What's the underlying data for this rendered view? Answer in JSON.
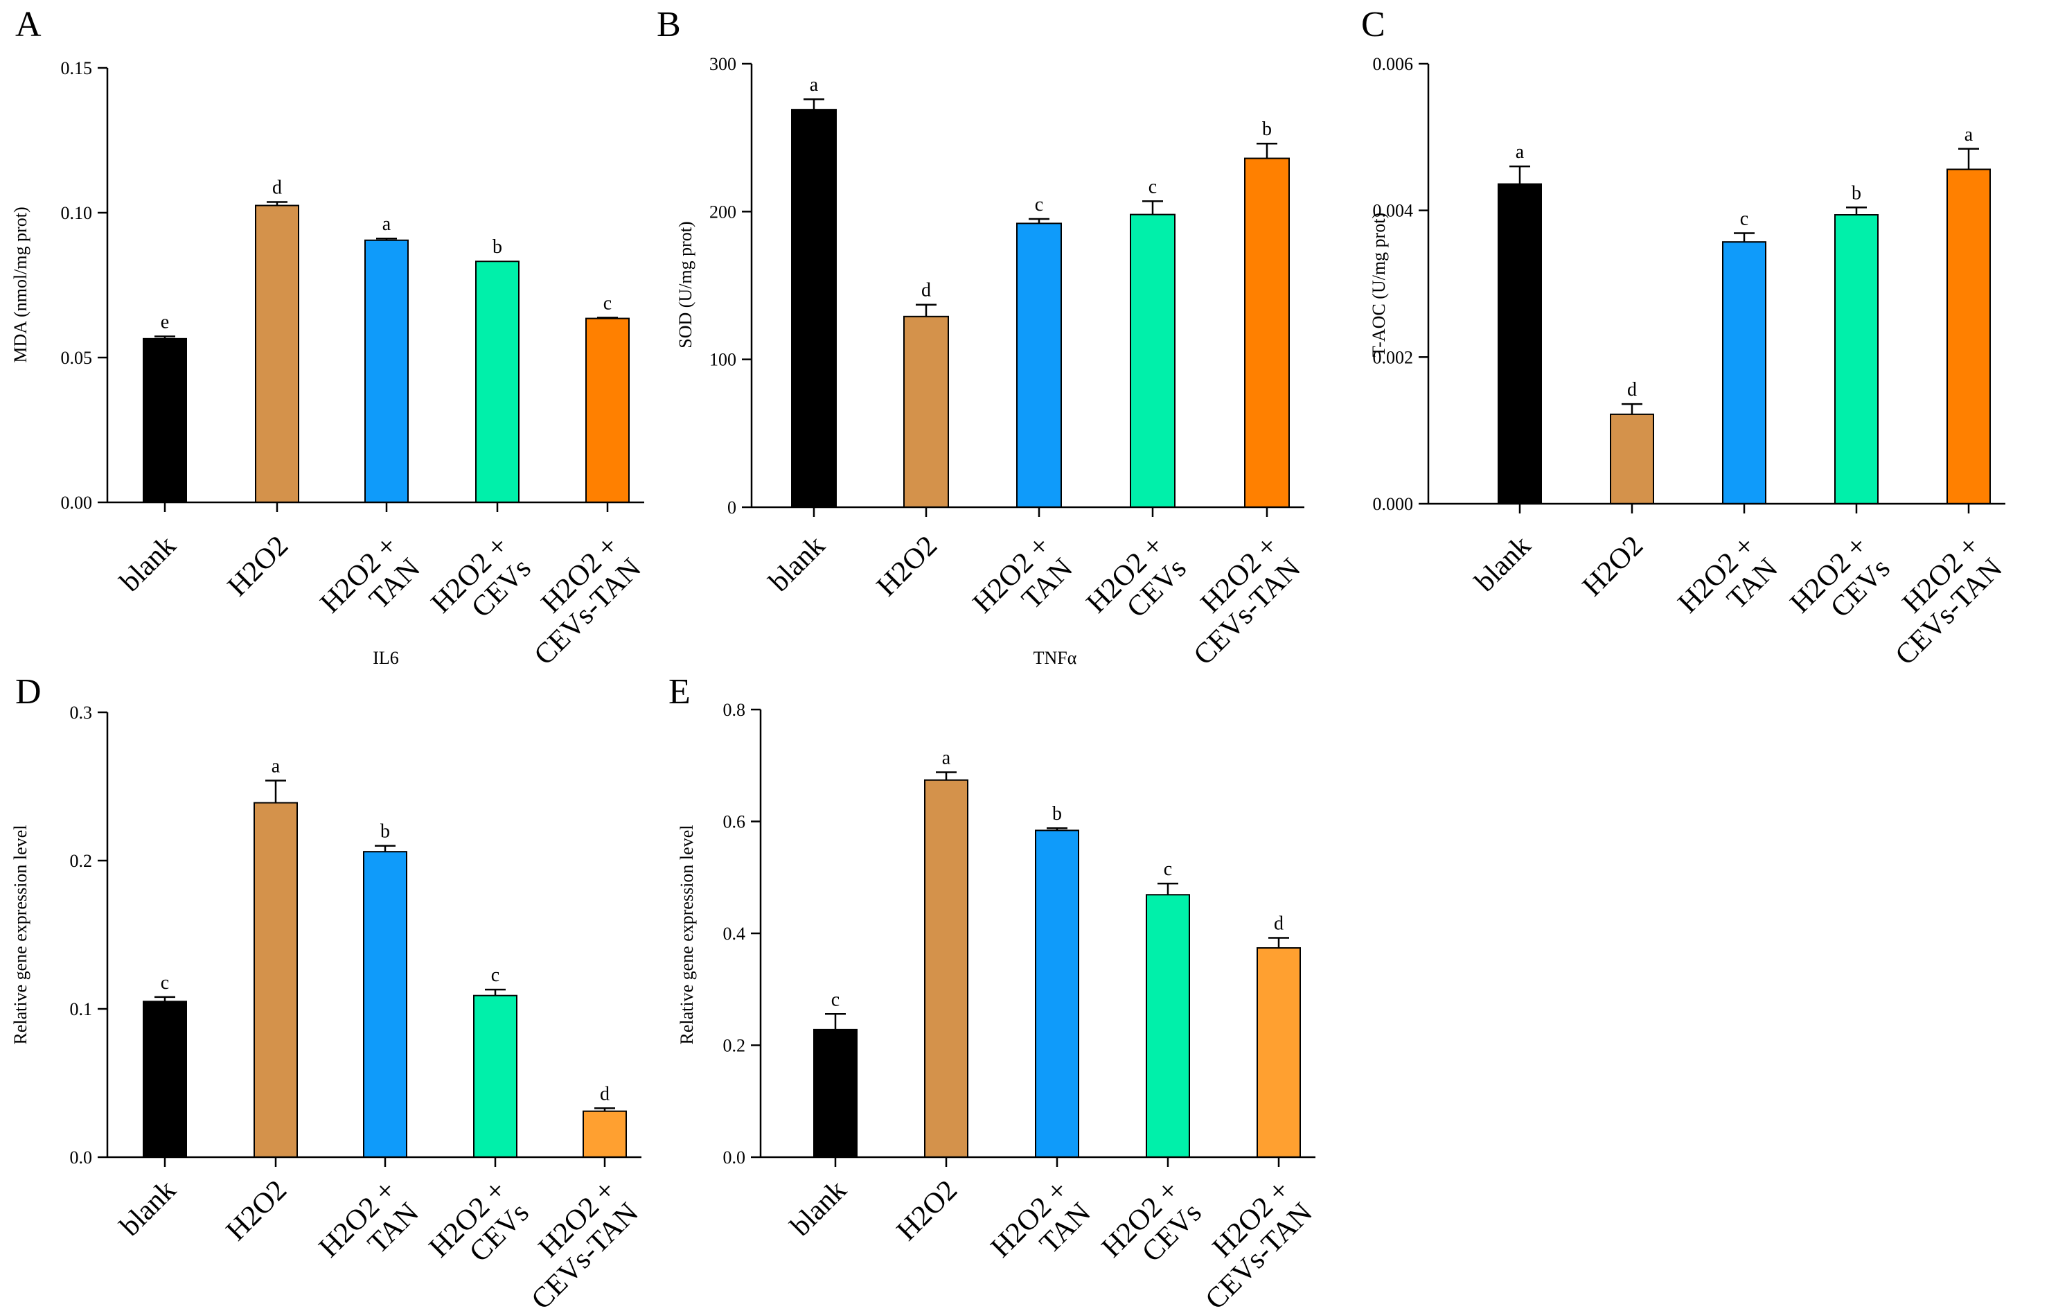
{
  "chart_data": [
    {
      "panel": "A",
      "type": "bar",
      "title": "",
      "ylabel": "MDA (nmol/mg prot)",
      "categories": [
        "blank",
        "H2O2",
        "H2O2 +|TAN",
        "H2O2 +|CEVs",
        "H2O2 +|CEVs-TAN"
      ],
      "values": [
        0.0565,
        0.1025,
        0.0905,
        0.0832,
        0.0635
      ],
      "errors": [
        0.0008,
        0.0012,
        0.0006,
        0.0,
        0.0003
      ],
      "letters": [
        "e",
        "d",
        "a",
        "b",
        "c"
      ],
      "colors": [
        "#000000",
        "#d4924b",
        "#0f9bfa",
        "#00f0aa",
        "#ff8000"
      ],
      "ylim": [
        0,
        0.15
      ],
      "yticks": [
        0.0,
        0.05,
        0.1,
        0.15
      ],
      "ytick_labels": [
        "0.00",
        "0.05",
        "0.10",
        "0.15"
      ],
      "grid": false,
      "legend": "none"
    },
    {
      "panel": "B",
      "type": "bar",
      "title": "",
      "ylabel": "SOD  (U/mg prot)",
      "categories": [
        "blank",
        "H2O2",
        "H2O2 +|TAN",
        "H2O2 +|CEVs",
        "H2O2 +|CEVs-TAN"
      ],
      "values": [
        269,
        129,
        192,
        198,
        236
      ],
      "errors": [
        7,
        8,
        3,
        9,
        10
      ],
      "letters": [
        "a",
        "d",
        "c",
        "c",
        "b"
      ],
      "colors": [
        "#000000",
        "#d4924b",
        "#0f9bfa",
        "#00f0aa",
        "#ff8000"
      ],
      "ylim": [
        0,
        300
      ],
      "yticks": [
        0,
        100,
        200,
        300
      ],
      "ytick_labels": [
        "0",
        "100",
        "200",
        "300"
      ],
      "grid": false,
      "legend": "none"
    },
    {
      "panel": "C",
      "type": "bar",
      "title": "",
      "ylabel": "T-AOC  (U/mg prot)",
      "categories": [
        "blank",
        "H2O2",
        "H2O2 +|TAN",
        "H2O2 +|CEVs",
        "H2O2 +|CEVs-TAN"
      ],
      "values": [
        0.00436,
        0.00122,
        0.00357,
        0.00394,
        0.00456
      ],
      "errors": [
        0.00024,
        0.00014,
        0.00012,
        0.0001,
        0.00028
      ],
      "letters": [
        "a",
        "d",
        "c",
        "b",
        "a"
      ],
      "colors": [
        "#000000",
        "#d4924b",
        "#0f9bfa",
        "#00f0aa",
        "#ff8000"
      ],
      "ylim": [
        0,
        0.006
      ],
      "yticks": [
        0,
        0.002,
        0.004,
        0.006
      ],
      "ytick_labels": [
        "0.000",
        "0.002",
        "0.004",
        "0.006"
      ],
      "grid": false,
      "legend": "none"
    },
    {
      "panel": "D",
      "type": "bar",
      "title": "IL6",
      "ylabel": "Relative gene expression level",
      "categories": [
        "blank",
        "H2O2",
        "H2O2 +|TAN",
        "H2O2 +|CEVs",
        "H2O2 +|CEVs-TAN"
      ],
      "values": [
        0.105,
        0.239,
        0.206,
        0.109,
        0.031
      ],
      "errors": [
        0.003,
        0.015,
        0.004,
        0.004,
        0.002
      ],
      "letters": [
        "c",
        "a",
        "b",
        "c",
        "d"
      ],
      "colors": [
        "#000000",
        "#d4924b",
        "#0f9bfa",
        "#00f0aa",
        "#ffa030"
      ],
      "ylim": [
        0,
        0.3
      ],
      "yticks": [
        0,
        0.1,
        0.2,
        0.3
      ],
      "ytick_labels": [
        "0.0",
        "0.1",
        "0.2",
        "0.3"
      ],
      "grid": false,
      "legend": "none"
    },
    {
      "panel": "E",
      "type": "bar",
      "title": "TNFα",
      "ylabel": "Relative gene expression level",
      "categories": [
        "blank",
        "H2O2",
        "H2O2 +|TAN",
        "H2O2 +|CEVs",
        "H2O2 +|CEVs-TAN"
      ],
      "values": [
        0.228,
        0.674,
        0.584,
        0.469,
        0.374
      ],
      "errors": [
        0.028,
        0.014,
        0.004,
        0.02,
        0.018
      ],
      "letters": [
        "c",
        "a",
        "b",
        "c",
        "d"
      ],
      "colors": [
        "#000000",
        "#d4924b",
        "#0f9bfa",
        "#00f0aa",
        "#ffa030"
      ],
      "ylim": [
        0,
        0.8
      ],
      "yticks": [
        0,
        0.2,
        0.4,
        0.6,
        0.8
      ],
      "ytick_labels": [
        "0.0",
        "0.2",
        "0.4",
        "0.6",
        "0.8"
      ],
      "grid": false,
      "legend": "none"
    }
  ]
}
